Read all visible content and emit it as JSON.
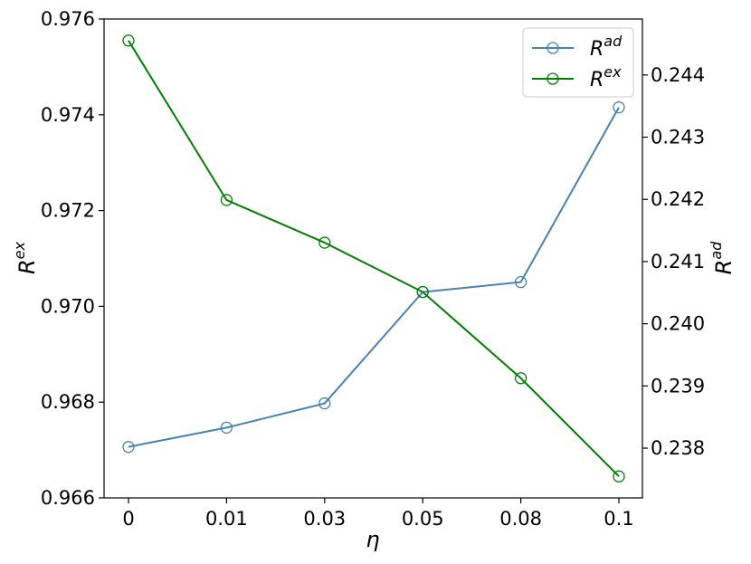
{
  "chart_data": {
    "type": "line",
    "categories": [
      "0",
      "0.01",
      "0.03",
      "0.05",
      "0.08",
      "0.1"
    ],
    "xlabel": "η",
    "ylabel_left": {
      "base": "R",
      "sup": "ex"
    },
    "ylabel_right": {
      "base": "R",
      "sup": "ad"
    },
    "left_axis": {
      "ylim": [
        0.966,
        0.976
      ],
      "ticks": [
        "0.966",
        "0.968",
        "0.970",
        "0.972",
        "0.974",
        "0.976"
      ]
    },
    "right_axis": {
      "ylim": [
        0.2372,
        0.2449
      ],
      "ticks": [
        "0.238",
        "0.239",
        "0.240",
        "0.241",
        "0.242",
        "0.243",
        "0.244"
      ]
    },
    "series": [
      {
        "name": "R^ad",
        "name_base": "R",
        "name_sup": "ad",
        "axis": "right",
        "color": "#4682b4",
        "marker": "open-circle",
        "values": [
          0.23802,
          0.23833,
          0.23872,
          0.24051,
          0.24067,
          0.24348
        ]
      },
      {
        "name": "R^ex",
        "name_base": "R",
        "name_sup": "ex",
        "axis": "left",
        "color": "#008000",
        "marker": "open-circle",
        "values": [
          0.97555,
          0.97222,
          0.97133,
          0.9703,
          0.9685,
          0.96645
        ]
      }
    ],
    "legend_position": "top-right",
    "grid": false
  }
}
